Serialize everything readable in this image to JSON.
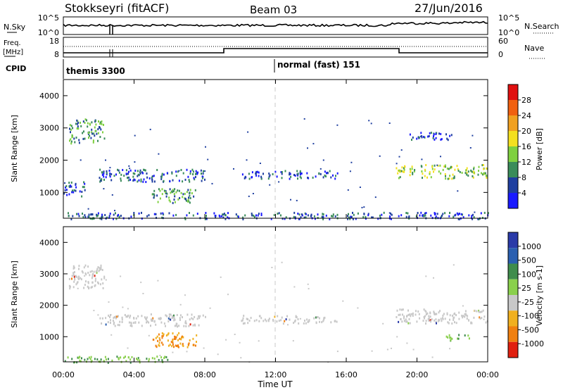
{
  "header": {
    "station": "Stokkseyri (fitACF)",
    "beam": "Beam 03",
    "date": "27/Jun/2016"
  },
  "noise_panel": {
    "left_label": "N.Sky",
    "right_label": "N.Search",
    "left_ticks": [
      "10^5",
      "10^0"
    ],
    "right_ticks": [
      "10^5",
      "10^0"
    ]
  },
  "freq_panel": {
    "left_label_1": "Freq.",
    "left_label_2": "[MHz]",
    "right_label": "Nave",
    "left_ticks": [
      "18",
      "8"
    ],
    "right_ticks": [
      "60",
      "0"
    ],
    "cpid_label": "CPID"
  },
  "cpid": [
    {
      "name": "themis 3300"
    },
    {
      "name": "normal (fast) 151"
    }
  ],
  "colors": {
    "power": [
      "#1a1aff",
      "#1f3fa0",
      "#3a8c5a",
      "#7fd040",
      "#f4e020",
      "#f0a020",
      "#f06010",
      "#e01010"
    ],
    "velocity": [
      "#2a3aa8",
      "#2a5fb0",
      "#3f8c4c",
      "#8ad04c",
      "#c8c8c8",
      "#f0b020",
      "#f08010",
      "#e02010"
    ],
    "ground": "#c8c8c8"
  },
  "chart_data": [
    {
      "type": "heatmap",
      "title": "Power",
      "xlabel": "",
      "ylabel": "Slant Range [km]",
      "x_ticks": [
        "00:00",
        "04:00",
        "08:00",
        "12:00",
        "16:00",
        "20:00",
        "00:00"
      ],
      "y_ticks": [
        "1000",
        "2000",
        "3000",
        "4000"
      ],
      "ylim": [
        200,
        4500
      ],
      "colorbar_label": "Power [dB]",
      "colorbar_ticks": [
        "4",
        "8",
        "12",
        "16",
        "20",
        "24",
        "28"
      ],
      "regions": [
        {
          "t": [
            0.3,
            2.3
          ],
          "r": [
            2550,
            3300
          ],
          "level": 12
        },
        {
          "t": [
            0.0,
            1.2
          ],
          "r": [
            900,
            1350
          ],
          "level": 8
        },
        {
          "t": [
            2.0,
            8.0
          ],
          "r": [
            1350,
            1750
          ],
          "level": 8
        },
        {
          "t": [
            5.0,
            7.5
          ],
          "r": [
            700,
            1150
          ],
          "level": 12
        },
        {
          "t": [
            10.0,
            15.5
          ],
          "r": [
            1450,
            1700
          ],
          "level": 8
        },
        {
          "t": [
            18.8,
            24.0
          ],
          "r": [
            1450,
            1900
          ],
          "level": 16
        },
        {
          "t": [
            19.5,
            22.0
          ],
          "r": [
            2650,
            2900
          ],
          "level": 8
        },
        {
          "t": [
            0.0,
            24.0
          ],
          "r": [
            200,
            400
          ],
          "level": 8
        }
      ]
    },
    {
      "type": "heatmap",
      "title": "Velocity",
      "xlabel": "Time UT",
      "ylabel": "Slant Range [km]",
      "x_ticks": [
        "00:00",
        "04:00",
        "08:00",
        "12:00",
        "16:00",
        "20:00",
        "00:00"
      ],
      "y_ticks": [
        "1000",
        "2000",
        "3000",
        "4000"
      ],
      "ylim": [
        200,
        4500
      ],
      "colorbar_label": "Velocity [m s-1]",
      "colorbar_ticks": [
        "1000",
        "500",
        "100",
        "25",
        "-25",
        "-100",
        "-500",
        "-1000"
      ],
      "regions": [
        {
          "t": [
            0.3,
            2.3
          ],
          "r": [
            2550,
            3300
          ],
          "v": 0
        },
        {
          "t": [
            2.0,
            8.0
          ],
          "r": [
            1350,
            1750
          ],
          "v": 0
        },
        {
          "t": [
            10.0,
            15.5
          ],
          "r": [
            1450,
            1700
          ],
          "v": 0
        },
        {
          "t": [
            18.8,
            24.0
          ],
          "r": [
            1450,
            1900
          ],
          "v": 0
        },
        {
          "t": [
            5.0,
            7.5
          ],
          "r": [
            700,
            1150
          ],
          "v": -100
        },
        {
          "t": [
            0.0,
            6.0
          ],
          "r": [
            200,
            400
          ],
          "v": 100
        },
        {
          "t": [
            21.5,
            23.0
          ],
          "r": [
            900,
            1100
          ],
          "v": 100
        }
      ]
    }
  ]
}
